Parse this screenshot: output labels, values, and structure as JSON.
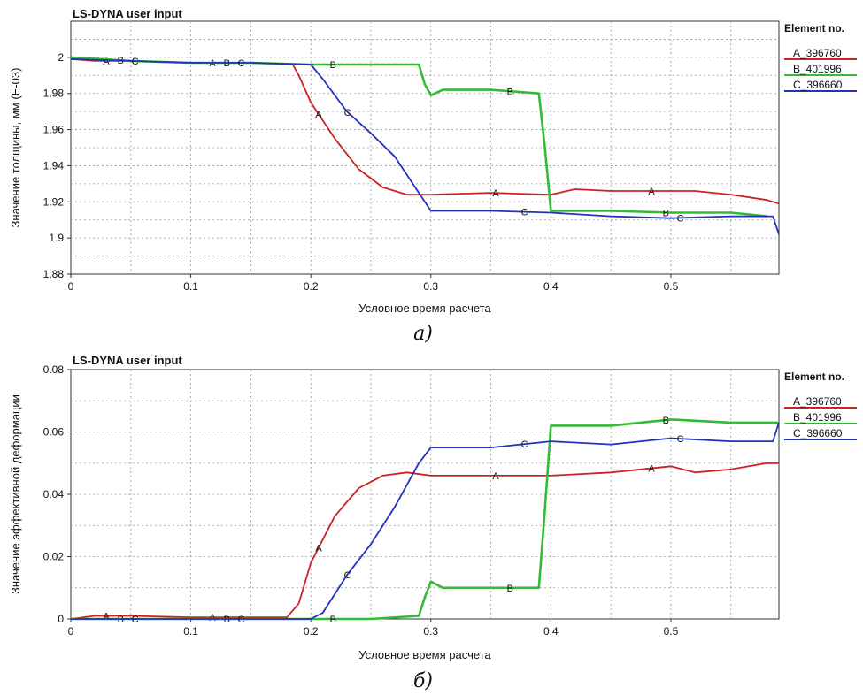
{
  "chart_data": [
    {
      "type": "line",
      "title": "LS-DYNA user input",
      "xlabel": "Условное время расчета",
      "ylabel": "Значение толщины, мм (E-03)",
      "caption": "а)",
      "xlim": [
        0,
        0.59
      ],
      "ylim": [
        1.88,
        2.02
      ],
      "x_ticks": [
        "0",
        "0.1",
        "0.2",
        "0.3",
        "0.4",
        "0.5"
      ],
      "y_ticks": [
        "1.88",
        "1.9",
        "1.92",
        "1.94",
        "1.96",
        "1.98",
        "2"
      ],
      "grid": true,
      "legend_title": "Element no.",
      "legend_position": "right",
      "series": [
        {
          "name": "A_396760",
          "marker": "A",
          "color": "#cc2222",
          "x": [
            0,
            0.02,
            0.05,
            0.1,
            0.15,
            0.185,
            0.19,
            0.2,
            0.22,
            0.24,
            0.26,
            0.28,
            0.3,
            0.35,
            0.4,
            0.42,
            0.45,
            0.5,
            0.52,
            0.55,
            0.58,
            0.59
          ],
          "y": [
            1.999,
            1.998,
            1.998,
            1.997,
            1.997,
            1.996,
            1.99,
            1.975,
            1.955,
            1.938,
            1.928,
            1.924,
            1.924,
            1.925,
            1.924,
            1.927,
            1.926,
            1.926,
            1.926,
            1.924,
            1.921,
            1.919
          ]
        },
        {
          "name": "B_401996",
          "marker": "B",
          "color": "#33bb33",
          "x": [
            0,
            0.05,
            0.1,
            0.15,
            0.2,
            0.25,
            0.29,
            0.295,
            0.3,
            0.31,
            0.35,
            0.39,
            0.395,
            0.4,
            0.45,
            0.5,
            0.55,
            0.58
          ],
          "y": [
            2.0,
            1.998,
            1.997,
            1.997,
            1.996,
            1.996,
            1.996,
            1.985,
            1.979,
            1.982,
            1.982,
            1.98,
            1.95,
            1.915,
            1.915,
            1.914,
            1.914,
            1.912
          ]
        },
        {
          "name": "C_396660",
          "marker": "C",
          "color": "#2233bb",
          "x": [
            0,
            0.05,
            0.1,
            0.15,
            0.2,
            0.21,
            0.23,
            0.25,
            0.27,
            0.285,
            0.3,
            0.35,
            0.4,
            0.45,
            0.5,
            0.55,
            0.585,
            0.59
          ],
          "y": [
            1.999,
            1.998,
            1.997,
            1.997,
            1.996,
            1.988,
            1.97,
            1.958,
            1.945,
            1.93,
            1.915,
            1.915,
            1.914,
            1.912,
            1.911,
            1.912,
            1.912,
            1.902
          ]
        }
      ]
    },
    {
      "type": "line",
      "title": "LS-DYNA user input",
      "xlabel": "Условное время расчета",
      "ylabel": "Значение эффективной деформации",
      "caption": "б)",
      "xlim": [
        0,
        0.59
      ],
      "ylim": [
        0,
        0.08
      ],
      "x_ticks": [
        "0",
        "0.1",
        "0.2",
        "0.3",
        "0.4",
        "0.5"
      ],
      "y_ticks": [
        "0",
        "0.02",
        "0.04",
        "0.06",
        "0.08"
      ],
      "grid": true,
      "legend_title": "Element no.",
      "legend_position": "right",
      "series": [
        {
          "name": "A_396760",
          "marker": "A",
          "color": "#cc2222",
          "x": [
            0,
            0.02,
            0.05,
            0.1,
            0.15,
            0.18,
            0.19,
            0.2,
            0.22,
            0.24,
            0.26,
            0.28,
            0.3,
            0.35,
            0.4,
            0.45,
            0.5,
            0.52,
            0.55,
            0.58,
            0.59
          ],
          "y": [
            0,
            0.001,
            0.001,
            0.0005,
            0.0005,
            0.0005,
            0.005,
            0.018,
            0.033,
            0.042,
            0.046,
            0.047,
            0.046,
            0.046,
            0.046,
            0.047,
            0.049,
            0.047,
            0.048,
            0.05,
            0.05
          ]
        },
        {
          "name": "B_401996",
          "marker": "B",
          "color": "#33bb33",
          "x": [
            0,
            0.1,
            0.2,
            0.25,
            0.29,
            0.295,
            0.3,
            0.31,
            0.35,
            0.39,
            0.395,
            0.4,
            0.45,
            0.5,
            0.55,
            0.585,
            0.59
          ],
          "y": [
            0,
            0,
            0,
            0,
            0.001,
            0.007,
            0.012,
            0.01,
            0.01,
            0.01,
            0.035,
            0.062,
            0.062,
            0.064,
            0.063,
            0.063,
            0.063
          ]
        },
        {
          "name": "C_396660",
          "marker": "C",
          "color": "#2233bb",
          "x": [
            0,
            0.1,
            0.2,
            0.21,
            0.23,
            0.25,
            0.27,
            0.29,
            0.3,
            0.35,
            0.4,
            0.45,
            0.5,
            0.55,
            0.585,
            0.59
          ],
          "y": [
            0,
            0,
            0,
            0.002,
            0.014,
            0.024,
            0.036,
            0.05,
            0.055,
            0.055,
            0.057,
            0.056,
            0.058,
            0.057,
            0.057,
            0.063
          ]
        }
      ]
    }
  ]
}
